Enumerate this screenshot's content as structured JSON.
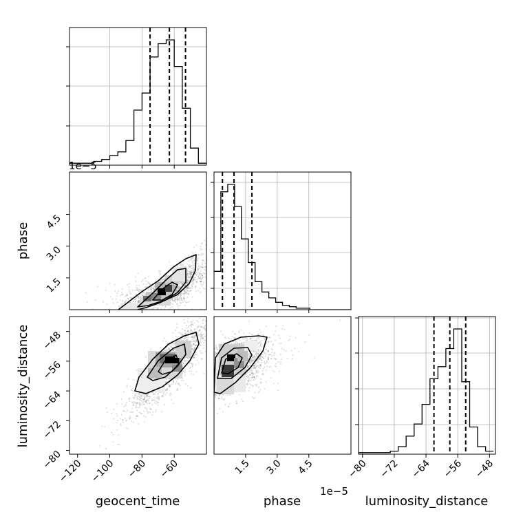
{
  "chart_data": {
    "type": "corner",
    "parameters": [
      "geocent_time",
      "phase",
      "luminosity_distance"
    ],
    "offset_label": "1e−5",
    "panels": [
      {
        "kind": "hist",
        "param": "geocent_time",
        "xlim": [
          -125,
          -40
        ],
        "bin_edges": [
          -125,
          -120,
          -115,
          -110,
          -105,
          -100,
          -95,
          -90,
          -85,
          -80,
          -75,
          -70,
          -65,
          -60,
          -55,
          -50,
          -45,
          -40
        ],
        "counts": [
          1,
          1,
          1,
          2,
          3,
          5,
          7,
          13,
          29,
          38,
          57,
          64,
          66,
          52,
          30,
          9,
          1
        ],
        "quantiles": [
          -75,
          -63,
          -53
        ],
        "xticks": [],
        "xtick_labels": []
      },
      {
        "kind": "scatter2d",
        "x": "geocent_time",
        "y": "phase",
        "xlim": [
          -125,
          -40
        ],
        "ylim": [
          0,
          6.5
        ],
        "yticks": [
          1.5,
          3.0,
          4.5
        ],
        "ytick_labels": [
          "1.5",
          "3.0",
          "4.5"
        ],
        "ylabel": "phase",
        "y_offset": "1e−5",
        "xticks": [],
        "xtick_labels": []
      },
      {
        "kind": "hist",
        "param": "phase",
        "xlim": [
          0,
          6.5
        ],
        "bin_edges": [
          0,
          0.325,
          0.65,
          0.975,
          1.3,
          1.625,
          1.95,
          2.275,
          2.6,
          2.925,
          3.25,
          3.575,
          3.9,
          4.225,
          4.55,
          4.875,
          5.2,
          5.525,
          5.85,
          6.175,
          6.5
        ],
        "counts": [
          26,
          80,
          85,
          70,
          48,
          32,
          19,
          12,
          8,
          5,
          3,
          2,
          1,
          1,
          0,
          0,
          0,
          0,
          0,
          0
        ],
        "quantiles": [
          0.4,
          0.95,
          1.8
        ],
        "xticks": [],
        "xtick_labels": []
      },
      {
        "kind": "scatter2d",
        "x": "geocent_time",
        "y": "luminosity_distance",
        "xlim": [
          -125,
          -40
        ],
        "ylim": [
          -81,
          -44
        ],
        "xticks": [
          -120,
          -100,
          -80,
          -60
        ],
        "xtick_labels": [
          "−120",
          "−100",
          "−80",
          "−60"
        ],
        "yticks": [
          -80,
          -72,
          -64,
          -56,
          -48
        ],
        "ytick_labels": [
          "−80",
          "−72",
          "−64",
          "−56",
          "−48"
        ],
        "xlabel": "geocent_time",
        "ylabel": "luminosity_distance"
      },
      {
        "kind": "scatter2d",
        "x": "phase",
        "y": "luminosity_distance",
        "xlim": [
          0,
          6.5
        ],
        "ylim": [
          -81,
          -44
        ],
        "xticks": [
          1.5,
          3.0,
          4.5
        ],
        "xtick_labels": [
          "1.5",
          "3.0",
          "4.5"
        ],
        "xlabel": "phase",
        "x_offset": "1e−5"
      },
      {
        "kind": "hist",
        "param": "luminosity_distance",
        "xlim": [
          -81,
          -46.5
        ],
        "bin_edges": [
          -81,
          -79,
          -77,
          -75,
          -73,
          -71,
          -69,
          -67,
          -65,
          -63,
          -61,
          -59,
          -57,
          -55,
          -53,
          -51,
          -49,
          -47
        ],
        "counts": [
          1,
          1,
          1,
          1,
          2,
          5,
          12,
          20,
          33,
          50,
          58,
          70,
          83,
          48,
          18,
          5,
          2
        ],
        "quantiles": [
          -62,
          -58,
          -54
        ],
        "xticks": [
          -80,
          -72,
          -64,
          -56,
          -48
        ],
        "xtick_labels": [
          "−80",
          "−72",
          "−64",
          "−56",
          "−48"
        ],
        "xlabel": "luminosity_distance"
      }
    ]
  }
}
